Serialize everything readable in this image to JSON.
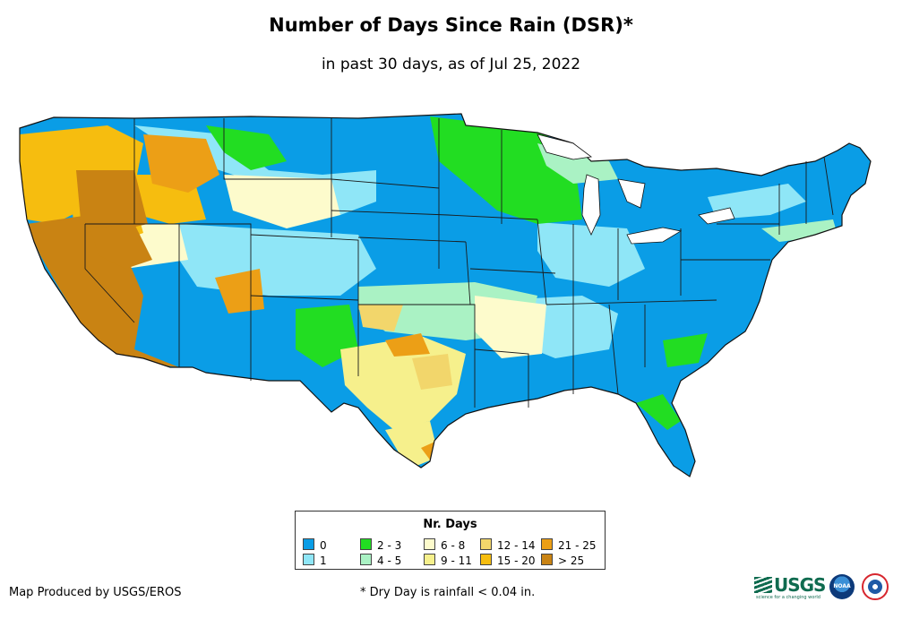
{
  "title": "Number of Days Since Rain (DSR)*",
  "subtitle": "in past 30 days, as of Jul 25, 2022",
  "legend": {
    "title": "Nr. Days",
    "classes": [
      {
        "label": "0",
        "color": "#0a9de6"
      },
      {
        "label": "1",
        "color": "#8fe6f7"
      },
      {
        "label": "2 - 3",
        "color": "#22dd22"
      },
      {
        "label": "4 - 5",
        "color": "#aaf2c4"
      },
      {
        "label": "6 - 8",
        "color": "#fdfbcc"
      },
      {
        "label": "9 - 11",
        "color": "#f6f08c"
      },
      {
        "label": "12 - 14",
        "color": "#f2d66b"
      },
      {
        "label": "15 - 20",
        "color": "#f6bd0f"
      },
      {
        "label": "21 - 25",
        "color": "#ec9f16"
      },
      {
        "label": "> 25",
        "color": "#c98313"
      }
    ]
  },
  "credit": "Map Produced by USGS/EROS",
  "footnote": "* Dry Day is rainfall < 0.04 in.",
  "logos": {
    "usgs": "USGS",
    "usgs_tagline": "science for a changing world",
    "noaa": "NOAA",
    "nws": "NWS"
  }
}
